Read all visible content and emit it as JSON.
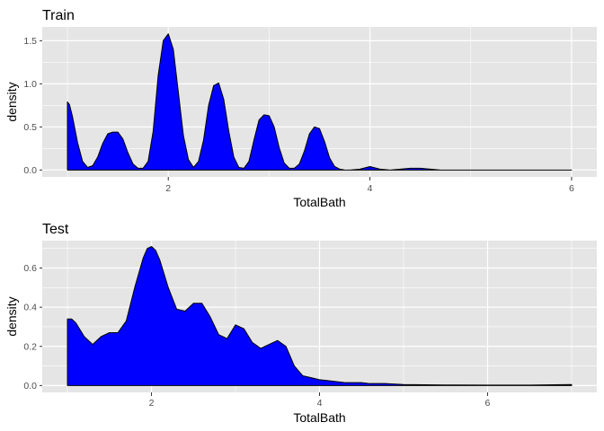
{
  "chart_data": [
    {
      "type": "area",
      "title": "Train",
      "xlabel": "TotalBath",
      "ylabel": "density",
      "xlim": [
        0.75,
        6.25
      ],
      "ylim": [
        -0.08,
        1.66
      ],
      "x_ticks": [
        2,
        4,
        6
      ],
      "y_ticks": [
        0.0,
        0.5,
        1.0,
        1.5
      ],
      "y_tick_labels": [
        "0.0",
        "0.5",
        "1.0",
        "1.5"
      ],
      "grid": true,
      "fill_color": "#0000FF",
      "line_color": "#000000",
      "panel_color": "#E5E5E5",
      "grid_color": "#FFFFFF",
      "series": [
        {
          "x": [
            1.0,
            1.02,
            1.05,
            1.1,
            1.15,
            1.2,
            1.25,
            1.3,
            1.35,
            1.4,
            1.45,
            1.5,
            1.55,
            1.6,
            1.65,
            1.7,
            1.75,
            1.8,
            1.85,
            1.9,
            1.95,
            2.0,
            2.05,
            2.1,
            2.15,
            2.2,
            2.25,
            2.3,
            2.35,
            2.4,
            2.45,
            2.5,
            2.55,
            2.6,
            2.65,
            2.7,
            2.75,
            2.8,
            2.85,
            2.9,
            2.95,
            3.0,
            3.05,
            3.1,
            3.15,
            3.2,
            3.25,
            3.3,
            3.35,
            3.4,
            3.45,
            3.5,
            3.55,
            3.6,
            3.65,
            3.7,
            3.75,
            3.8,
            3.9,
            4.0,
            4.1,
            4.2,
            4.3,
            4.4,
            4.5,
            4.6,
            4.7,
            4.8,
            5.0,
            5.5,
            6.0
          ],
          "y": [
            0.79,
            0.76,
            0.62,
            0.32,
            0.1,
            0.03,
            0.05,
            0.15,
            0.31,
            0.42,
            0.44,
            0.44,
            0.36,
            0.2,
            0.07,
            0.02,
            0.02,
            0.1,
            0.45,
            1.1,
            1.5,
            1.58,
            1.4,
            0.9,
            0.4,
            0.12,
            0.03,
            0.1,
            0.35,
            0.75,
            0.98,
            1.01,
            0.82,
            0.45,
            0.15,
            0.03,
            0.02,
            0.1,
            0.35,
            0.58,
            0.64,
            0.63,
            0.5,
            0.26,
            0.08,
            0.02,
            0.02,
            0.07,
            0.22,
            0.42,
            0.5,
            0.48,
            0.33,
            0.14,
            0.04,
            0.01,
            0.0,
            0.0,
            0.01,
            0.04,
            0.01,
            0.0,
            0.01,
            0.02,
            0.02,
            0.01,
            0.0,
            0.0,
            0.0,
            0.0,
            0.0
          ]
        }
      ]
    },
    {
      "type": "area",
      "title": "Test",
      "xlabel": "TotalBath",
      "ylabel": "density",
      "xlim": [
        0.7,
        7.3
      ],
      "ylim": [
        -0.035,
        0.74
      ],
      "x_ticks": [
        2,
        4,
        6
      ],
      "y_ticks": [
        0.0,
        0.2,
        0.4,
        0.6
      ],
      "y_tick_labels": [
        "0.0",
        "0.2",
        "0.4",
        "0.6"
      ],
      "grid": true,
      "fill_color": "#0000FF",
      "line_color": "#000000",
      "panel_color": "#E5E5E5",
      "grid_color": "#FFFFFF",
      "series": [
        {
          "x": [
            1.0,
            1.05,
            1.1,
            1.2,
            1.3,
            1.4,
            1.5,
            1.6,
            1.7,
            1.8,
            1.9,
            1.95,
            2.0,
            2.05,
            2.1,
            2.2,
            2.3,
            2.4,
            2.5,
            2.6,
            2.7,
            2.8,
            2.9,
            3.0,
            3.1,
            3.2,
            3.3,
            3.4,
            3.5,
            3.6,
            3.7,
            3.8,
            3.9,
            4.0,
            4.1,
            4.2,
            4.3,
            4.4,
            4.5,
            4.6,
            4.8,
            5.0,
            5.5,
            6.0,
            6.5,
            7.0
          ],
          "y": [
            0.34,
            0.34,
            0.32,
            0.25,
            0.21,
            0.25,
            0.27,
            0.27,
            0.33,
            0.5,
            0.65,
            0.7,
            0.71,
            0.69,
            0.64,
            0.5,
            0.39,
            0.38,
            0.42,
            0.42,
            0.35,
            0.26,
            0.24,
            0.31,
            0.29,
            0.22,
            0.19,
            0.21,
            0.23,
            0.2,
            0.1,
            0.05,
            0.04,
            0.03,
            0.025,
            0.02,
            0.015,
            0.015,
            0.015,
            0.01,
            0.01,
            0.005,
            0.003,
            0.002,
            0.002,
            0.005
          ]
        }
      ]
    }
  ]
}
